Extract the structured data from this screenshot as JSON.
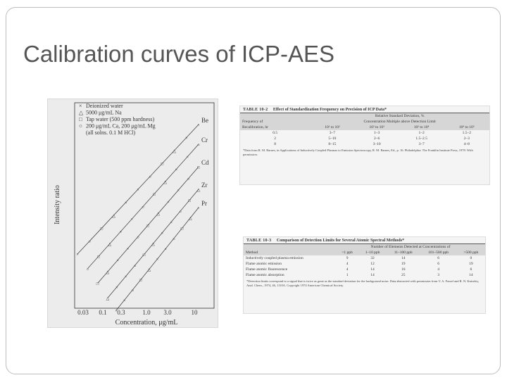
{
  "slide": {
    "title": "Calibration curves of ICP-AES"
  },
  "chart_data": {
    "type": "scatter",
    "xlabel": "Concentration, μg/mL",
    "ylabel": "Intensity ratio",
    "x_ticks": [
      "0.03",
      "0.1",
      "0.3",
      "1.0",
      "3.0",
      "10"
    ],
    "x_scale": "log",
    "legend": [
      {
        "marker": "×",
        "label": "Deionized water"
      },
      {
        "marker": "△",
        "label": "5000 μg/mL Na"
      },
      {
        "marker": "□",
        "label": "Tap water (500 ppm hardness)"
      },
      {
        "marker": "○",
        "label": "200 μg/mL Ca, 200 μg/mL Mg"
      },
      {
        "marker": "",
        "label": "(all solns. 0.1 M HCl)"
      }
    ],
    "series_labels": [
      "Be",
      "Cr",
      "Cd",
      "Zr",
      "Pr"
    ],
    "grid": false
  },
  "table1": {
    "label": "TABLE 10-2",
    "title": "Effect of Standardization Frequency on Precision of ICP Data*",
    "group_header": "Relative Standard Deviation, %",
    "sub_header": "Concentration Multiple above Detection Limit",
    "row_header_1": "Frequency of",
    "row_header_2": "Recalibration, hr",
    "columns": [
      "10¹ to 10²",
      "10² to 10³",
      "10³ to 10⁴",
      "10⁴ to 10⁵"
    ],
    "rows": [
      [
        "0.5",
        "3–7",
        "1–3",
        "1–2",
        "1.5–2"
      ],
      [
        "2",
        "5–10",
        "2–6",
        "1.5–2.5",
        "2–3"
      ],
      [
        "8",
        "8–15",
        "3–10",
        "3–7",
        "4–8"
      ]
    ],
    "footnote": "*Data from R. M. Barnes, in Applications of Inductively Coupled Plasmas to Emission Spectroscopy, R. M. Barnes, Ed., p. 16. Philadelphia: The Franklin Institute Press, 1978. With permission."
  },
  "table2": {
    "label": "TABLE 10-3",
    "title": "Comparison of Detection Limits for Several Atomic Spectral Methods*",
    "group_header": "Number of Elements Detected at Concentrations of",
    "method_header": "Method",
    "columns": [
      "<1 ppb",
      "1–10 ppb",
      "11–100 ppb",
      "101–500 ppb",
      ">500 ppb"
    ],
    "rows": [
      [
        "Inductively coupled plasma emission",
        "9",
        "32",
        "14",
        "6",
        "0"
      ],
      [
        "Flame atomic emission",
        "4",
        "12",
        "19",
        "6",
        "19"
      ],
      [
        "Flame atomic fluorescence",
        "4",
        "14",
        "16",
        "4",
        "6"
      ],
      [
        "Flame atomic absorption",
        "1",
        "14",
        "25",
        "3",
        "14"
      ]
    ],
    "footnote": "*Detection limits correspond to a signal that is twice as great as the standard deviation for the background noise. Data abstracted with permission from V. A. Fassel and R. N. Kniseley, Anal. Chem., 1974, 46, 1110A. Copyright 1974 American Chemical Society."
  }
}
